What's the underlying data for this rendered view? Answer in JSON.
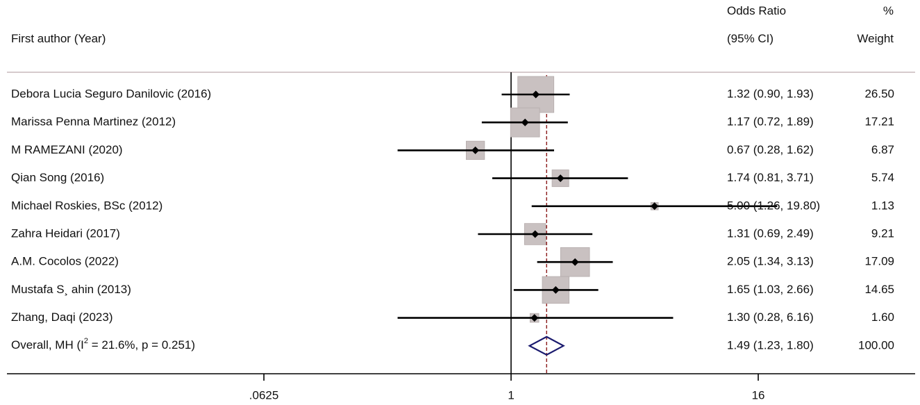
{
  "chart_data": {
    "type": "forest",
    "header": {
      "study_col": "First author (Year)",
      "or_line1": "Odds Ratio",
      "or_line2": "(95% CI)",
      "weight_line1": "%",
      "weight_line2": "Weight"
    },
    "x_scale": "log",
    "x_ticks": [
      {
        "value": 0.0625,
        "label": ".0625"
      },
      {
        "value": 1,
        "label": "1"
      },
      {
        "value": 16,
        "label": "16"
      }
    ],
    "xlim": [
      0.0035,
      93
    ],
    "null_value": 1,
    "studies": [
      {
        "label": "Debora Lucia Seguro Danilovic (2016)",
        "or": 1.32,
        "lo": 0.9,
        "hi": 1.93,
        "ci_text": "1.32 (0.90, 1.93)",
        "weight": 26.5,
        "weight_text": "26.50"
      },
      {
        "label": "Marissa Penna Martinez (2012)",
        "or": 1.17,
        "lo": 0.72,
        "hi": 1.89,
        "ci_text": "1.17 (0.72, 1.89)",
        "weight": 17.21,
        "weight_text": "17.21"
      },
      {
        "label": "M RAMEZANI (2020)",
        "or": 0.67,
        "lo": 0.28,
        "hi": 1.62,
        "ci_text": "0.67 (0.28, 1.62)",
        "weight": 6.87,
        "weight_text": "6.87"
      },
      {
        "label": "Qian Song (2016)",
        "or": 1.74,
        "lo": 0.81,
        "hi": 3.71,
        "ci_text": "1.74 (0.81, 3.71)",
        "weight": 5.74,
        "weight_text": "5.74"
      },
      {
        "label": "Michael Roskies, BSc (2012)",
        "or": 5.0,
        "lo": 1.26,
        "hi": 19.8,
        "ci_text": "5.00 (1.26, 19.80)",
        "weight": 1.13,
        "weight_text": "1.13"
      },
      {
        "label": "Zahra Heidari (2017)",
        "or": 1.31,
        "lo": 0.69,
        "hi": 2.49,
        "ci_text": "1.31 (0.69, 2.49)",
        "weight": 9.21,
        "weight_text": "9.21"
      },
      {
        "label": "A.M. Cocolos (2022)",
        "or": 2.05,
        "lo": 1.34,
        "hi": 3.13,
        "ci_text": "2.05 (1.34, 3.13)",
        "weight": 17.09,
        "weight_text": "17.09"
      },
      {
        "label": "Mustafa S¸ ahin (2013)",
        "or": 1.65,
        "lo": 1.03,
        "hi": 2.66,
        "ci_text": "1.65 (1.03, 2.66)",
        "weight": 14.65,
        "weight_text": "14.65"
      },
      {
        "label": "Zhang, Daqi (2023)",
        "or": 1.3,
        "lo": 0.28,
        "hi": 6.16,
        "ci_text": "1.30 (0.28, 6.16)",
        "weight": 1.6,
        "weight_text": "1.60"
      }
    ],
    "overall": {
      "label_pre": "Overall, MH (I",
      "label_sup": "2",
      "label_post": " = 21.6%, p = 0.251)",
      "or": 1.49,
      "lo": 1.23,
      "hi": 1.8,
      "ci_text": "1.49 (1.23, 1.80)",
      "weight_text": "100.00"
    },
    "colors": {
      "box": "#c9c1c1",
      "box_stroke": "#b5acac",
      "ci_line": "#000000",
      "point": "#000000",
      "overall_line": "#8b1a1a",
      "diamond": "#1a1a6e",
      "separator": "#c9b8bc",
      "axis": "#000000"
    }
  }
}
